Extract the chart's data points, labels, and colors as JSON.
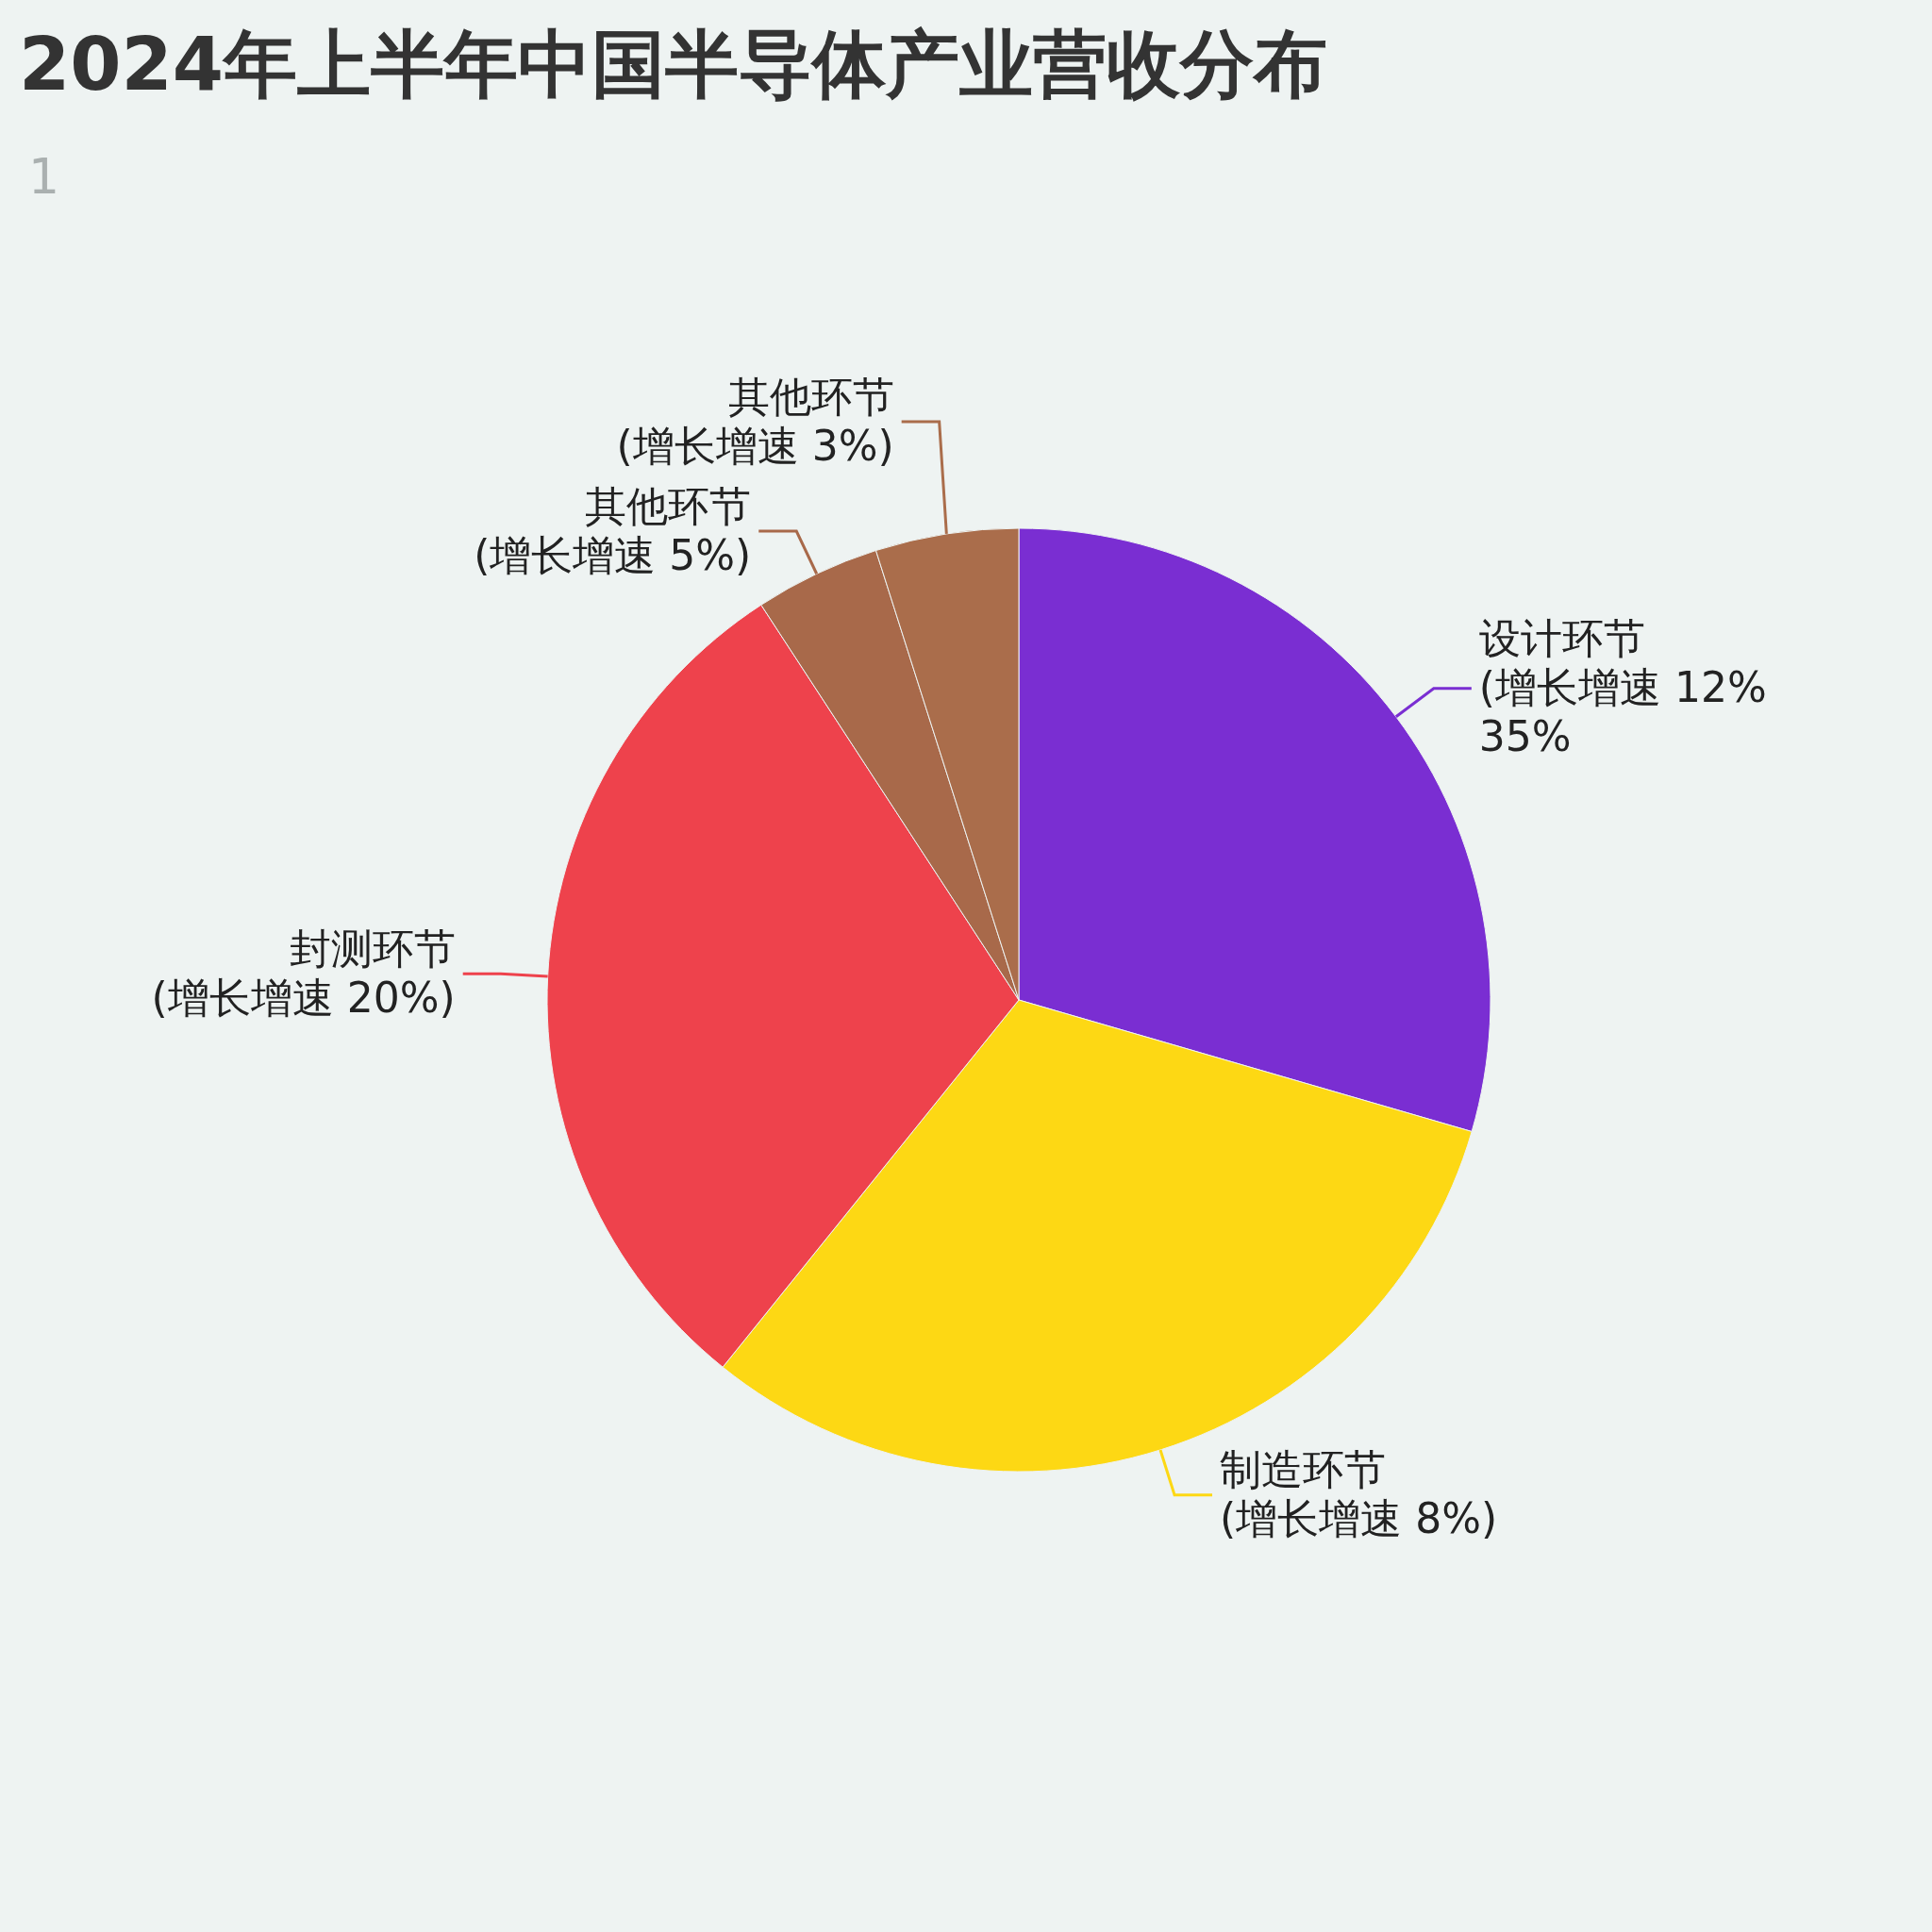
{
  "chart_data": {
    "type": "pie",
    "title": "2024年上半年中国半导体产业营收分布",
    "subtitle": "1",
    "categories": [
      "设计环节\n(增长增速 12%\n35%",
      "制造环节\n(增长增速 8%)",
      "封测环节\n(增长增速 20%)",
      "其他环节\n(增长增速 5%)",
      "其他环节\n(增长增速 3%)"
    ],
    "values": [
      29.5,
      31.3,
      30.0,
      4.3,
      4.9
    ],
    "colors": [
      "#7a2ed2",
      "#fdd814",
      "#ee424c",
      "#a8694a",
      "#aa6d4b"
    ]
  }
}
